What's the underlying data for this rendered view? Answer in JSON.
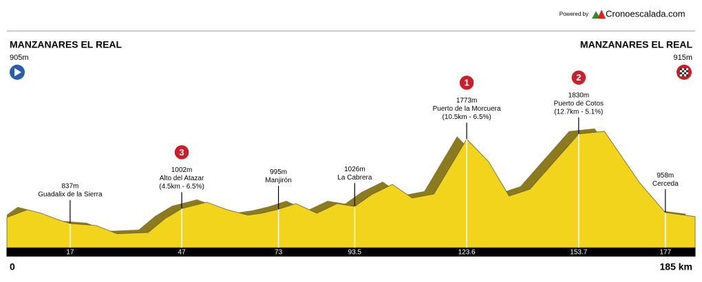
{
  "header": {
    "powered": "Powered by",
    "brand": "Cronoescalada.com"
  },
  "chart_data": {
    "type": "profile",
    "start": {
      "name": "MANZANARES EL REAL",
      "elevation": 905,
      "elevation_label": "905m"
    },
    "finish": {
      "name": "MANZANARES EL REAL",
      "elevation": 915,
      "elevation_label": "915m"
    },
    "x": [
      0,
      5.5,
      9.2,
      13,
      17,
      24,
      29.6,
      38,
      42.5,
      47,
      53.7,
      59.2,
      64.8,
      68.5,
      73,
      77.7,
      83.3,
      88.8,
      93.5,
      98,
      103.6,
      109,
      114.8,
      123.6,
      129.5,
      135,
      140.6,
      153.7,
      160.6,
      170,
      177,
      185
    ],
    "values": [
      905,
      990,
      951,
      891,
      837,
      815,
      723,
      738,
      891,
      1002,
      1073,
      990,
      929,
      951,
      995,
      1058,
      951,
      1058,
      1026,
      1157,
      1271,
      1119,
      1165,
      1773,
      1522,
      1142,
      1218,
      1830,
      1860,
      1294,
      958,
      915
    ],
    "color": "#f2d41c",
    "shade_color": "#8b7b1e",
    "xlim": [
      0,
      185
    ],
    "ylim": [
      570,
      2400
    ],
    "xticks": [
      0,
      {
        "value": 185,
        "label": "185 km"
      }
    ],
    "waypoints": [
      {
        "km": 17,
        "elevation": 837,
        "elevation_label": "837m",
        "name": "Guadalix de la Sierra"
      },
      {
        "km": 47,
        "elevation": 1002,
        "elevation_label": "1002m",
        "name": "Alto del Atazar",
        "detail": "(4.5km - 6.5%)",
        "badge": "3"
      },
      {
        "km": 73,
        "elevation": 995,
        "elevation_label": "995m",
        "name": "Manjirón"
      },
      {
        "km": 93.5,
        "elevation": 1026,
        "elevation_label": "1026m",
        "name": "La Cabrera"
      },
      {
        "km": 123.6,
        "elevation": 1773,
        "elevation_label": "1773m",
        "name": "Puerto de la Morcuera",
        "detail": "(10.5km - 6.5%)",
        "badge": "1"
      },
      {
        "km": 153.7,
        "elevation": 1830,
        "elevation_label": "1830m",
        "name": "Puerto de Cotos",
        "detail": "(12.7km - 5.1%)",
        "badge": "2"
      },
      {
        "km": 177,
        "elevation": 958,
        "elevation_label": "958m",
        "name": "Cerceda"
      }
    ]
  }
}
